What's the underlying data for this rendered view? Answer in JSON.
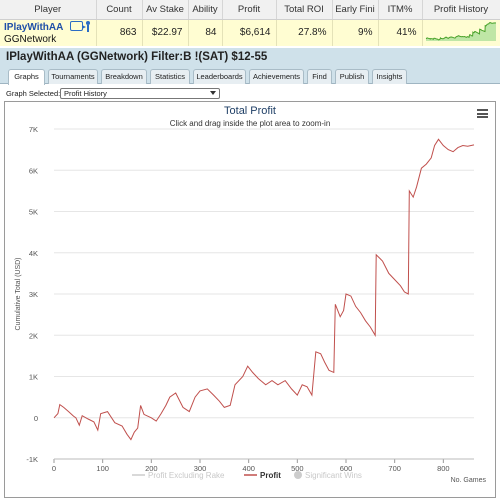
{
  "table": {
    "headers": [
      "Player",
      "Count",
      "Av Stake",
      "Ability",
      "Profit",
      "Total ROI",
      "Early Fini",
      "ITM%",
      "Profit History"
    ],
    "row": {
      "player": "IPlayWithAA",
      "network": "GGNetwork",
      "count": "863",
      "av_stake": "$22.97",
      "ability": "84",
      "profit": "$6,614",
      "total_roi": "27.8%",
      "early_fini": "9%",
      "itm": "41%"
    }
  },
  "filter_title": "IPlayWithAA (GGNetwork) Filter:B !(SAT) $12-55",
  "tabs": [
    "Graphs",
    "Tournaments",
    "Breakdown",
    "Statistics",
    "Leaderboards",
    "Achievements",
    "Find",
    "Publish",
    "Insights"
  ],
  "active_tab": "Graphs",
  "graph_select": {
    "label": "Graph Selected:",
    "value": "Profit History"
  },
  "chart_data": {
    "type": "line",
    "title": "Total Profit",
    "subtitle": "Click and drag inside the plot area to zoom-in",
    "xlabel": "No. Games",
    "ylabel": "Cumulative Total (USD)",
    "xlim": [
      0,
      863
    ],
    "ylim": [
      -1000,
      7000
    ],
    "x_ticks": [
      0,
      100,
      200,
      300,
      400,
      500,
      600,
      700,
      800
    ],
    "y_ticks": [
      -1000,
      0,
      1000,
      2000,
      3000,
      4000,
      5000,
      6000,
      7000
    ],
    "y_tick_labels": [
      "-1K",
      "0",
      "1K",
      "2K",
      "3K",
      "4K",
      "5K",
      "6K",
      "7K"
    ],
    "grid": true,
    "legend_position": "bottom",
    "legend": [
      {
        "name": "Profit Excluding Rake",
        "color": "#cccccc",
        "enabled": false
      },
      {
        "name": "Profit",
        "color": "#c0504d",
        "enabled": true
      },
      {
        "name": "Significant Wins",
        "color": "#cccccc",
        "enabled": false
      }
    ],
    "series": [
      {
        "name": "Profit",
        "color": "#c0504d",
        "points": [
          [
            0,
            0
          ],
          [
            8,
            100
          ],
          [
            12,
            320
          ],
          [
            20,
            250
          ],
          [
            30,
            150
          ],
          [
            40,
            40
          ],
          [
            45,
            0
          ],
          [
            52,
            -180
          ],
          [
            58,
            50
          ],
          [
            70,
            -30
          ],
          [
            82,
            -100
          ],
          [
            90,
            -300
          ],
          [
            96,
            100
          ],
          [
            110,
            150
          ],
          [
            125,
            -120
          ],
          [
            140,
            -200
          ],
          [
            150,
            -400
          ],
          [
            158,
            -530
          ],
          [
            165,
            -350
          ],
          [
            172,
            -250
          ],
          [
            178,
            300
          ],
          [
            185,
            80
          ],
          [
            200,
            0
          ],
          [
            210,
            -80
          ],
          [
            220,
            100
          ],
          [
            230,
            300
          ],
          [
            238,
            500
          ],
          [
            250,
            600
          ],
          [
            265,
            250
          ],
          [
            278,
            150
          ],
          [
            290,
            500
          ],
          [
            300,
            650
          ],
          [
            315,
            700
          ],
          [
            328,
            550
          ],
          [
            340,
            400
          ],
          [
            350,
            250
          ],
          [
            362,
            300
          ],
          [
            372,
            800
          ],
          [
            388,
            1000
          ],
          [
            398,
            1250
          ],
          [
            408,
            1100
          ],
          [
            420,
            950
          ],
          [
            435,
            800
          ],
          [
            448,
            900
          ],
          [
            460,
            800
          ],
          [
            475,
            900
          ],
          [
            488,
            700
          ],
          [
            500,
            550
          ],
          [
            510,
            800
          ],
          [
            520,
            750
          ],
          [
            530,
            550
          ],
          [
            538,
            1600
          ],
          [
            548,
            1550
          ],
          [
            556,
            1350
          ],
          [
            565,
            1150
          ],
          [
            575,
            1100
          ],
          [
            578,
            2750
          ],
          [
            588,
            2450
          ],
          [
            595,
            2600
          ],
          [
            600,
            3000
          ],
          [
            610,
            2950
          ],
          [
            620,
            2700
          ],
          [
            630,
            2550
          ],
          [
            640,
            2350
          ],
          [
            650,
            2200
          ],
          [
            660,
            2000
          ],
          [
            662,
            3950
          ],
          [
            675,
            3800
          ],
          [
            688,
            3500
          ],
          [
            700,
            3350
          ],
          [
            712,
            3200
          ],
          [
            720,
            3050
          ],
          [
            728,
            3000
          ],
          [
            730,
            5500
          ],
          [
            738,
            5350
          ],
          [
            745,
            5600
          ],
          [
            755,
            6050
          ],
          [
            765,
            6150
          ],
          [
            775,
            6300
          ],
          [
            782,
            6600
          ],
          [
            790,
            6750
          ],
          [
            800,
            6600
          ],
          [
            810,
            6500
          ],
          [
            820,
            6450
          ],
          [
            830,
            6550
          ],
          [
            840,
            6600
          ],
          [
            850,
            6580
          ],
          [
            863,
            6614
          ]
        ]
      }
    ]
  }
}
